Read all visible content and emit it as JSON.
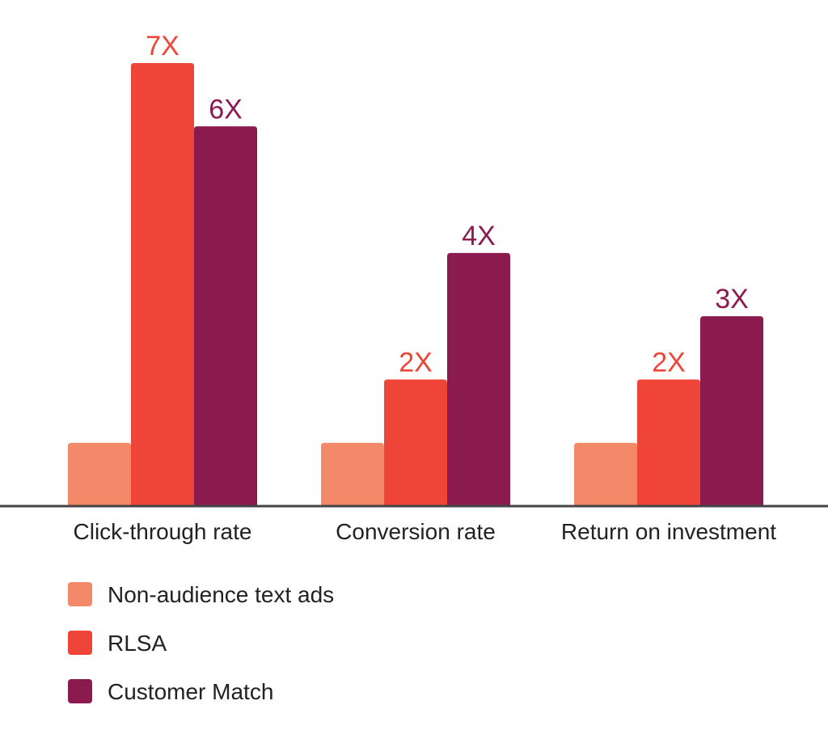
{
  "chart_data": {
    "type": "bar",
    "categories": [
      "Click-through rate",
      "Conversion rate",
      "Return on investment"
    ],
    "series": [
      {
        "name": "Non-audience text ads",
        "values": [
          1,
          1,
          1
        ],
        "labels": [
          "",
          "",
          ""
        ],
        "color": "#F4896A"
      },
      {
        "name": "RLSA",
        "values": [
          7,
          2,
          2
        ],
        "labels": [
          "7X",
          "2X",
          "2X"
        ],
        "color": "#EE4538"
      },
      {
        "name": "Customer Match",
        "values": [
          6,
          4,
          3
        ],
        "labels": [
          "6X",
          "4X",
          "3X"
        ],
        "color": "#8B1A4F"
      }
    ],
    "ylim": [
      0,
      7
    ],
    "grid": false,
    "legend_position": "bottom-left",
    "axis_color": "#444444"
  }
}
